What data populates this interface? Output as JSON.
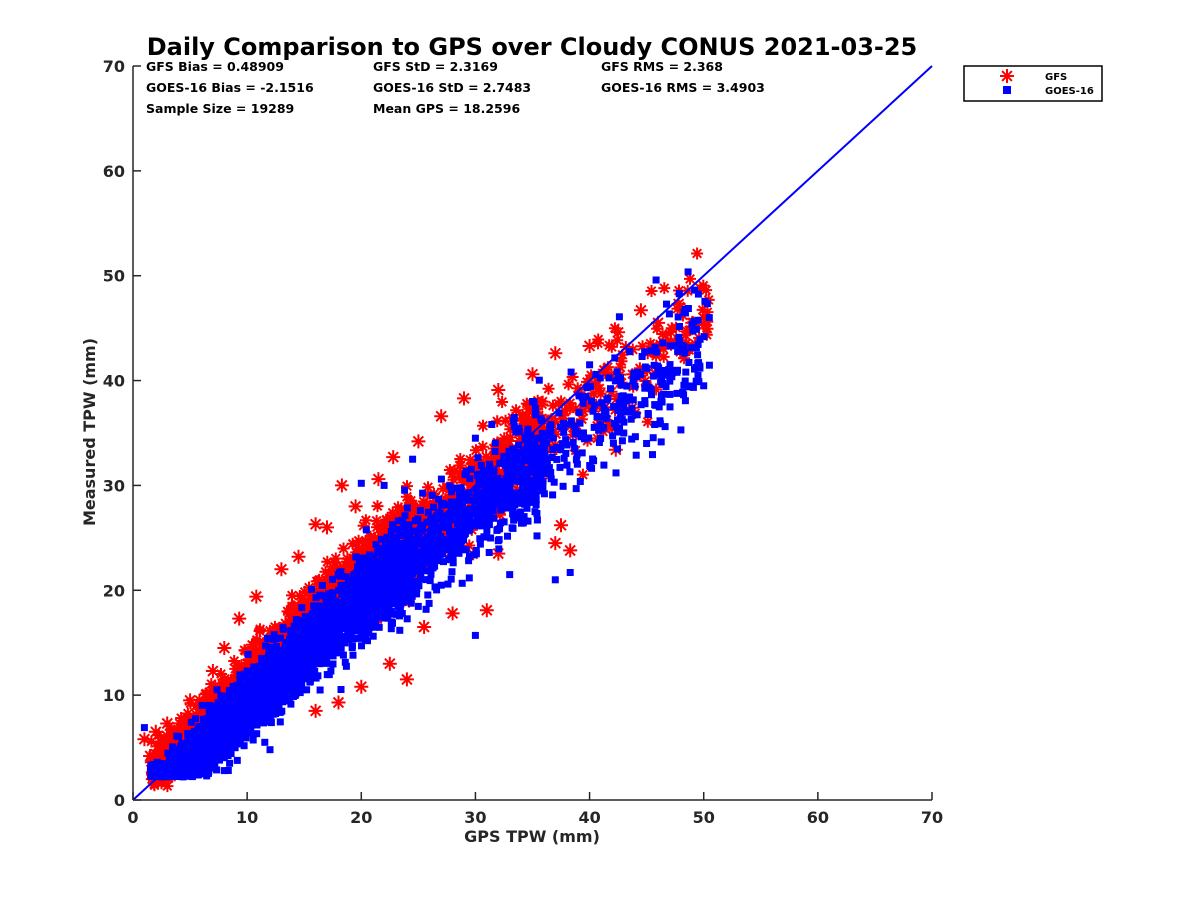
{
  "chart_data": {
    "type": "scatter",
    "title": "Daily Comparison to GPS over Cloudy CONUS 2021-03-25",
    "xlabel": "GPS TPW (mm)",
    "ylabel": "Measured TPW (mm)",
    "xlim": [
      0,
      70
    ],
    "ylim": [
      0,
      70
    ],
    "xticks": [
      "0",
      "10",
      "20",
      "30",
      "40",
      "50",
      "60",
      "70"
    ],
    "yticks": [
      "0",
      "10",
      "20",
      "30",
      "40",
      "50",
      "60",
      "70"
    ],
    "grid": false,
    "legend_position": "outside-top-right",
    "stats": [
      "GFS Bias = 0.48909",
      "GFS StD = 2.3169",
      "GFS RMS = 2.368",
      "GOES-16 Bias = -2.1516",
      "GOES-16 StD = 2.7483",
      "GOES-16 RMS = 3.4903",
      "Sample Size = 19289",
      "Mean GPS = 18.2596"
    ],
    "reference_line": {
      "type": "one-to-one",
      "x": [
        0,
        70
      ],
      "y": [
        0,
        70
      ],
      "color": "#0000ff"
    },
    "series": [
      {
        "name": "GFS",
        "marker": "asterisk",
        "color": "#ff0000",
        "bias": 0.48909,
        "spread": 2.3169,
        "outliers": [
          [
            1,
            5.8
          ],
          [
            1.5,
            4.2
          ],
          [
            2,
            6.5
          ],
          [
            3,
            7.3
          ],
          [
            5,
            9.5
          ],
          [
            7,
            12.3
          ],
          [
            8,
            14.5
          ],
          [
            9.3,
            17.3
          ],
          [
            10.8,
            19.4
          ],
          [
            13,
            22
          ],
          [
            14.5,
            23.2
          ],
          [
            16,
            26.3
          ],
          [
            17,
            26
          ],
          [
            18.3,
            30
          ],
          [
            19.5,
            28
          ],
          [
            21.5,
            30.6
          ],
          [
            22.8,
            32.7
          ],
          [
            25,
            34.2
          ],
          [
            27,
            36.6
          ],
          [
            29,
            38.3
          ],
          [
            32,
            39.1
          ],
          [
            35,
            40.6
          ],
          [
            37,
            42.6
          ],
          [
            40,
            43.3
          ],
          [
            42.5,
            44.6
          ],
          [
            44.5,
            46.7
          ],
          [
            46,
            45.5
          ],
          [
            47.8,
            47.3
          ],
          [
            49,
            45.5
          ],
          [
            50,
            45.3
          ],
          [
            16,
            8.5
          ],
          [
            18,
            9.3
          ],
          [
            20,
            10.8
          ],
          [
            22.5,
            13
          ],
          [
            24,
            11.5
          ],
          [
            25.5,
            16.5
          ],
          [
            28,
            17.8
          ],
          [
            31,
            18.1
          ],
          [
            32,
            23.5
          ],
          [
            37,
            24.5
          ],
          [
            37.5,
            26.2
          ],
          [
            38.3,
            23.8
          ],
          [
            42.3,
            33.4
          ],
          [
            35.5,
            30
          ]
        ]
      },
      {
        "name": "GOES-16",
        "marker": "square",
        "color": "#0000ff",
        "bias": -2.1516,
        "spread": 2.7483,
        "outliers": [
          [
            1,
            6.9
          ],
          [
            2,
            2.7
          ],
          [
            3,
            2.3
          ],
          [
            6,
            2.5
          ],
          [
            8,
            2.8
          ],
          [
            12,
            4.8
          ],
          [
            20,
            30.2
          ],
          [
            22,
            30
          ],
          [
            24.5,
            32.5
          ],
          [
            30,
            15.7
          ],
          [
            33,
            21.5
          ],
          [
            34,
            27
          ],
          [
            37,
            21
          ],
          [
            38.3,
            21.7
          ],
          [
            43,
            35
          ],
          [
            45,
            34
          ],
          [
            48,
            35.3
          ],
          [
            49.5,
            40.5
          ],
          [
            50,
            39.5
          ],
          [
            30,
            34.5
          ],
          [
            35,
            38
          ],
          [
            40,
            41.5
          ]
        ]
      }
    ]
  },
  "legend": {
    "items": [
      {
        "label": "GFS",
        "marker": "asterisk",
        "color": "#ff0000"
      },
      {
        "label": "GOES-16",
        "marker": "square",
        "color": "#0000ff"
      }
    ]
  }
}
